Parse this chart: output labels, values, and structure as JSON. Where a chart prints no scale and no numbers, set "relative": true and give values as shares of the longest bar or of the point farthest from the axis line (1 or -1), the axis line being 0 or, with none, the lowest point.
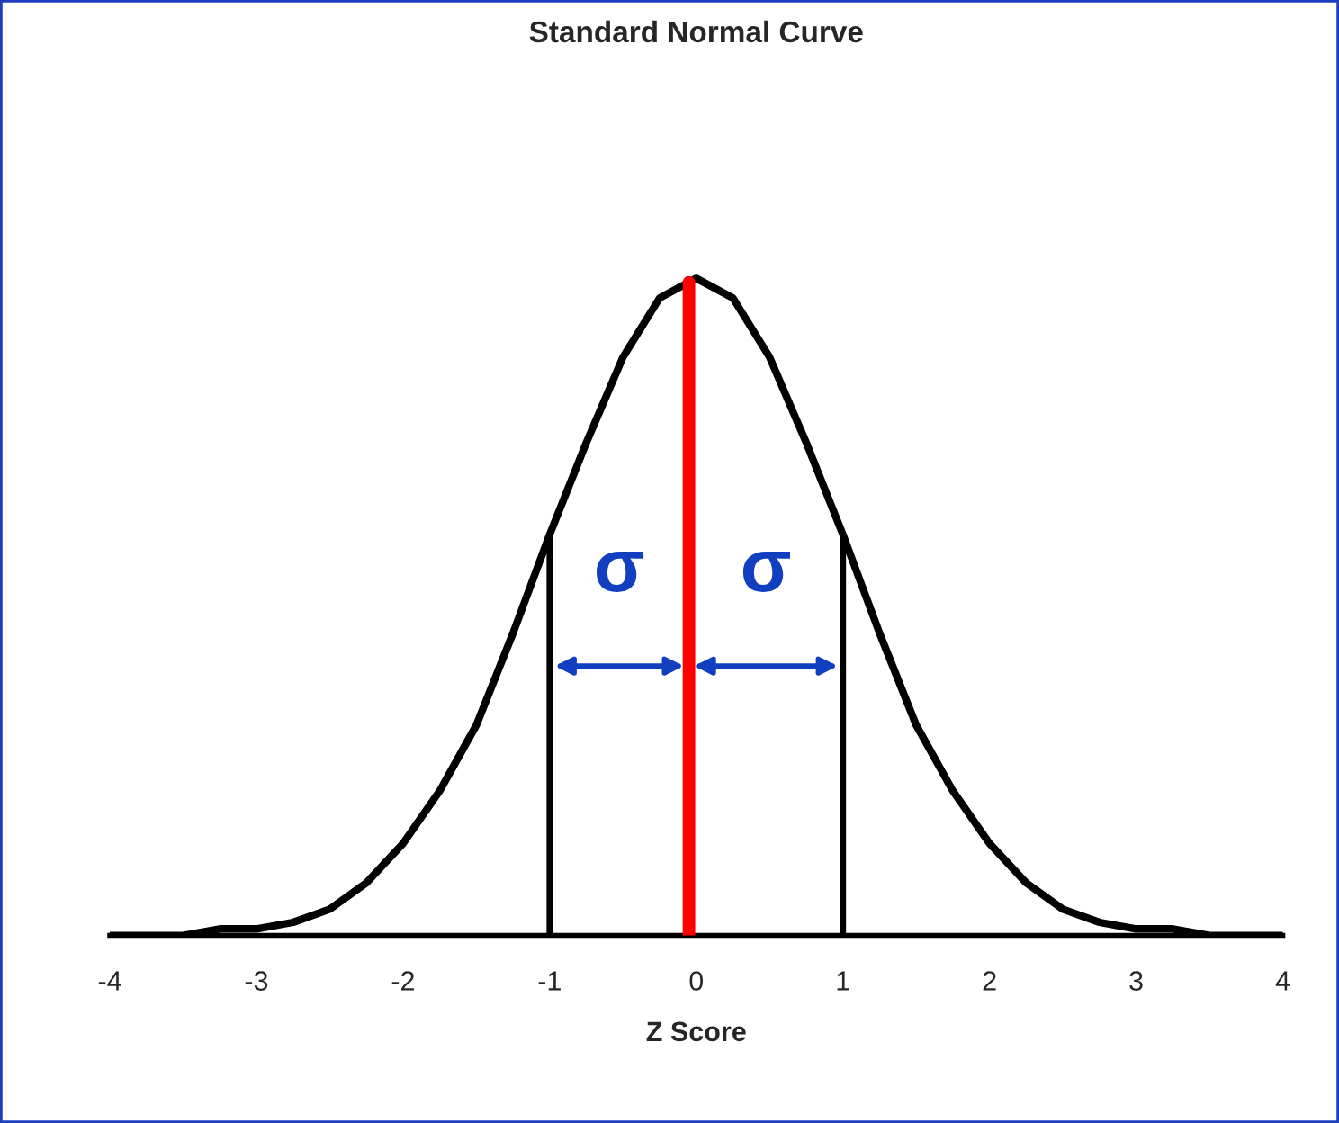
{
  "chart_data": {
    "type": "line",
    "title": "Standard Normal Curve",
    "xlabel": "Z Score",
    "relative": true,
    "x": [
      -4,
      -3.75,
      -3.5,
      -3.25,
      -3,
      -2.75,
      -2.5,
      -2.25,
      -2,
      -1.75,
      -1.5,
      -1.25,
      -1,
      -0.75,
      -0.5,
      -0.25,
      0,
      0.25,
      0.5,
      0.75,
      1,
      1.25,
      1.5,
      1.75,
      2,
      2.25,
      2.5,
      2.75,
      3,
      3.25,
      3.5,
      3.75,
      4
    ],
    "series": [
      {
        "color": "#000000",
        "values": [
          0,
          0,
          0,
          0.01,
          0.01,
          0.02,
          0.04,
          0.08,
          0.14,
          0.22,
          0.32,
          0.46,
          0.61,
          0.75,
          0.88,
          0.97,
          1,
          0.97,
          0.88,
          0.75,
          0.61,
          0.46,
          0.32,
          0.22,
          0.14,
          0.08,
          0.04,
          0.02,
          0.01,
          0.01,
          0,
          0,
          0
        ]
      }
    ],
    "xlim": [
      -4,
      4
    ],
    "xticks": [
      -4,
      -3,
      -2,
      -1,
      0,
      1,
      2,
      3,
      4
    ],
    "ref_lines": [
      {
        "axis": "x",
        "value": -1,
        "color": "#000000"
      },
      {
        "axis": "x",
        "value": -0.05,
        "color": "#ff0000"
      },
      {
        "axis": "x",
        "value": 1,
        "color": "#000000"
      }
    ],
    "annotations": [
      "σ",
      "σ"
    ],
    "grid": false,
    "legend": false,
    "marker": "none",
    "line_style": "solid"
  }
}
